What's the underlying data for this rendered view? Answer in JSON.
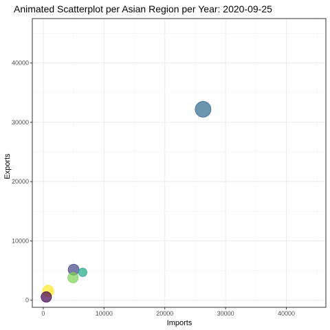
{
  "chart_data": {
    "type": "scatter",
    "title": "Animated Scatterplot per Asian Region per Year: 2020-09-25",
    "xlabel": "Imports",
    "ylabel": "Exports",
    "xlim": [
      -1800,
      46500
    ],
    "ylim": [
      -1200,
      47500
    ],
    "x_ticks": [
      0,
      10000,
      20000,
      30000,
      40000
    ],
    "y_ticks": [
      0,
      10000,
      20000,
      30000,
      40000
    ],
    "x_tick_labels": [
      "0",
      "10000",
      "20000",
      "30000",
      "40000"
    ],
    "y_tick_labels": [
      "0",
      "10000",
      "20000",
      "30000",
      "40000"
    ],
    "grid": true,
    "legend": "none",
    "points": [
      {
        "x": 26300,
        "y": 32200,
        "size": 11.5,
        "color": "#31688e"
      },
      {
        "x": 5000,
        "y": 5150,
        "size": 8.0,
        "color": "#414487"
      },
      {
        "x": 6500,
        "y": 4700,
        "size": 6.2,
        "color": "#21a685"
      },
      {
        "x": 4900,
        "y": 3800,
        "size": 7.6,
        "color": "#7ad151"
      },
      {
        "x": 800,
        "y": 1550,
        "size": 8.2,
        "color": "#fde725"
      },
      {
        "x": 500,
        "y": 550,
        "size": 7.6,
        "color": "#440154"
      }
    ]
  }
}
